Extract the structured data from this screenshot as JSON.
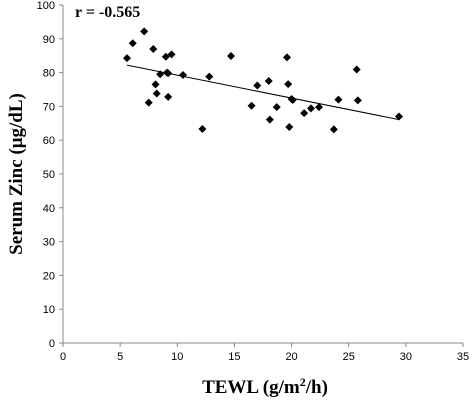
{
  "chart_data": {
    "type": "scatter",
    "title": "",
    "annotation": "r = -0.565",
    "xlabel_pre": "TEWL (g/m",
    "xlabel_sup": "2",
    "xlabel_post": "/h)",
    "ylabel": "Serum Zinc (μg/dL)",
    "xlim": [
      0,
      35
    ],
    "ylim": [
      0,
      100
    ],
    "x_ticks": [
      "0",
      "5",
      "10",
      "15",
      "20",
      "25",
      "30",
      "35"
    ],
    "y_ticks": [
      "0",
      "10",
      "20",
      "30",
      "40",
      "50",
      "60",
      "70",
      "80",
      "90",
      "100"
    ],
    "grid": false,
    "legend": "none",
    "marker_color": "#000000",
    "series": [
      {
        "x": [
          5.6,
          6.1,
          7.1,
          7.5,
          7.9,
          8.1,
          8.2,
          8.5,
          9.0,
          9.1,
          9.2,
          9.2,
          9.5,
          10.5,
          12.2,
          12.8,
          14.7,
          16.5,
          17.0,
          18.0,
          18.1,
          18.7,
          19.6,
          19.7,
          19.8,
          20.0,
          20.1,
          21.1,
          21.7,
          22.4,
          23.7,
          24.1,
          25.7,
          25.8,
          29.4
        ],
        "y": [
          84.3,
          88.7,
          92.2,
          71.1,
          87.0,
          76.5,
          73.8,
          79.5,
          84.7,
          80.0,
          72.8,
          79.8,
          85.4,
          79.3,
          63.3,
          78.8,
          84.9,
          70.2,
          76.2,
          77.5,
          66.1,
          69.8,
          84.5,
          76.6,
          63.9,
          72.2,
          71.9,
          68.0,
          69.4,
          69.8,
          63.2,
          72.0,
          80.9,
          71.8,
          67.0
        ]
      }
    ],
    "trendline": {
      "x": [
        5.6,
        29.4
      ],
      "y": [
        82.2,
        66.1
      ]
    }
  }
}
